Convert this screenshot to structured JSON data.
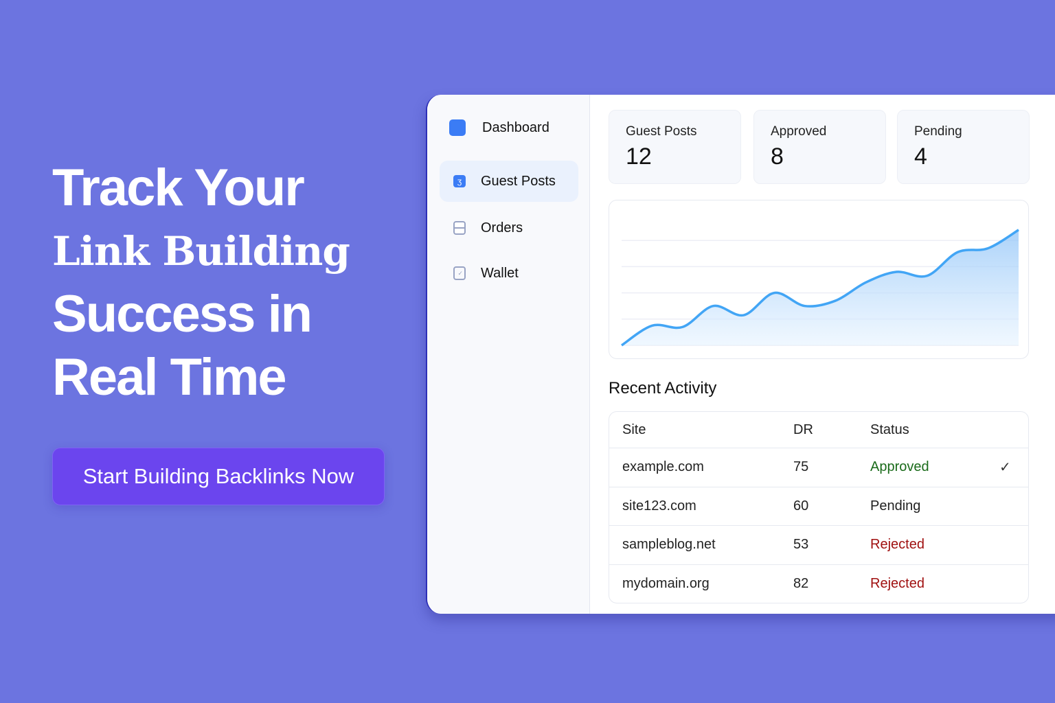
{
  "hero": {
    "line1": "Track Your",
    "line2": "Link Building",
    "line3": "Success in",
    "line4": "Real Time",
    "cta_label": "Start Building Backlinks Now"
  },
  "colors": {
    "background": "#6c74e0",
    "cta": "#6b45ee",
    "accent": "#3b7cf5",
    "line": "#42a5f5",
    "approved": "#1a6b1a",
    "rejected": "#a01010"
  },
  "sidebar": {
    "items": [
      {
        "label": "Dashboard",
        "icon": "square-icon",
        "active": false
      },
      {
        "label": "Guest Posts",
        "icon": "guest-posts-icon",
        "active": true
      },
      {
        "label": "Orders",
        "icon": "orders-icon",
        "active": false
      },
      {
        "label": "Wallet",
        "icon": "wallet-icon",
        "active": false
      }
    ]
  },
  "stats": [
    {
      "label": "Guest Posts",
      "value": "12"
    },
    {
      "label": "Approved",
      "value": "8"
    },
    {
      "label": "Pending",
      "value": "4"
    }
  ],
  "chart_data": {
    "type": "area",
    "x": [
      1,
      2,
      3,
      4,
      5,
      6,
      7,
      8,
      9,
      10,
      11,
      12,
      13,
      14
    ],
    "values": [
      0,
      15,
      14,
      30,
      23,
      40,
      30,
      34,
      48,
      56,
      53,
      71,
      74,
      88
    ],
    "ylim": [
      0,
      100
    ],
    "grid": true,
    "legend": "none"
  },
  "recent_activity": {
    "title": "Recent Activity",
    "columns": [
      "Site",
      "DR",
      "Status"
    ],
    "rows": [
      {
        "site": "example.com",
        "dr": "75",
        "status": "Approved",
        "check": "✓"
      },
      {
        "site": "site123.com",
        "dr": "60",
        "status": "Pending",
        "check": ""
      },
      {
        "site": "sampleblog.net",
        "dr": "53",
        "status": "Rejected",
        "check": ""
      },
      {
        "site": "mydomain.org",
        "dr": "82",
        "status": "Rejected",
        "check": ""
      }
    ]
  }
}
